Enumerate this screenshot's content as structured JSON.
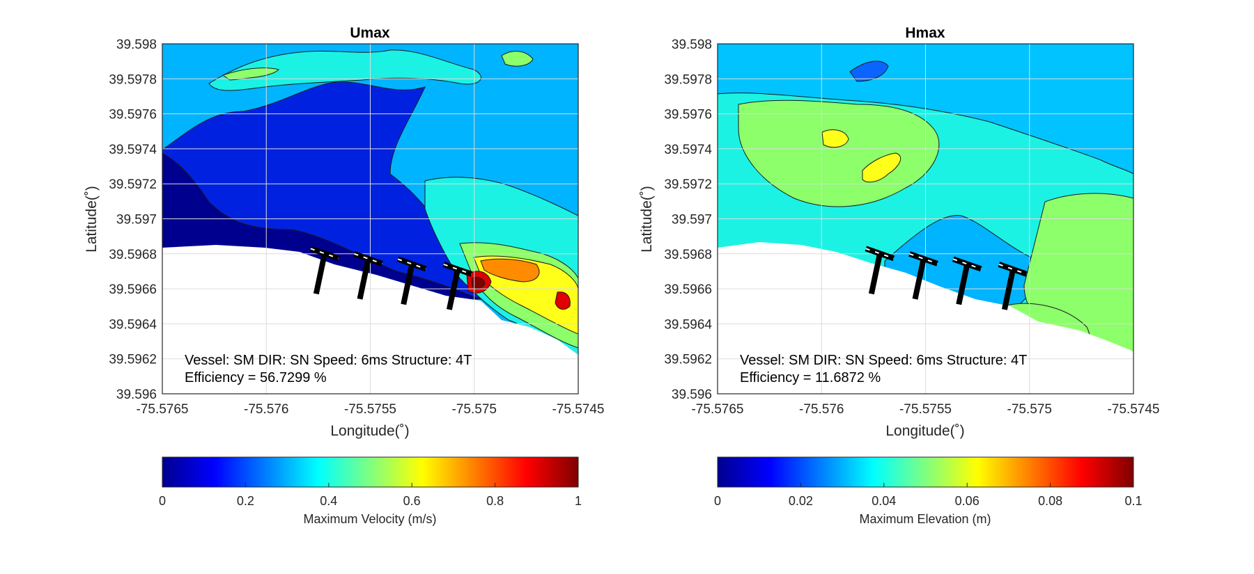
{
  "colors": {
    "deep_blue": "#00008f",
    "blue": "#0022e0",
    "mid_blue": "#0a64ff",
    "sky": "#00b4ff",
    "cyan": "#1cf2e4",
    "light_green": "#8cff6a",
    "yellow": "#ffff1a",
    "orange": "#ff8c00",
    "red": "#e00000",
    "dark_red": "#800000",
    "land": "#ffffff",
    "structure": "#000000"
  },
  "chart_data": [
    {
      "type": "heatmap",
      "title": "Umax",
      "xlabel": "Longitude(˚)",
      "ylabel": "Latitude(˚)",
      "xlim": [
        -75.5765,
        -75.5745
      ],
      "ylim": [
        39.596,
        39.598
      ],
      "xticks": [
        "-75.5765",
        "-75.576",
        "-75.5755",
        "-75.575",
        "-75.5745"
      ],
      "yticks": [
        "39.598",
        "39.5978",
        "39.5976",
        "39.5974",
        "39.5972",
        "39.597",
        "39.5968",
        "39.5966",
        "39.5964",
        "39.5962",
        "39.596"
      ],
      "grid": true,
      "colorbar": {
        "label": "Maximum Velocity (m/s)",
        "min": 0,
        "max": 1,
        "ticks": [
          "0",
          "0.2",
          "0.4",
          "0.6",
          "0.8",
          "1"
        ],
        "colormap": "jet"
      },
      "annotation_line1": "Vessel: SM DIR: SN Speed: 6ms Structure: 4T",
      "annotation_line2": "Efficiency = 56.7299 %",
      "structures_count": 4
    },
    {
      "type": "heatmap",
      "title": "Hmax",
      "xlabel": "Longitude(˚)",
      "ylabel": "Latitude(˚)",
      "xlim": [
        -75.5765,
        -75.5745
      ],
      "ylim": [
        39.596,
        39.598
      ],
      "xticks": [
        "-75.5765",
        "-75.576",
        "-75.5755",
        "-75.575",
        "-75.5745"
      ],
      "yticks": [
        "39.598",
        "39.5978",
        "39.5976",
        "39.5974",
        "39.5972",
        "39.597",
        "39.5968",
        "39.5966",
        "39.5964",
        "39.5962",
        "39.596"
      ],
      "grid": true,
      "colorbar": {
        "label": "Maximum Elevation (m)",
        "min": 0,
        "max": 0.1,
        "ticks": [
          "0",
          "0.02",
          "0.04",
          "0.06",
          "0.08",
          "0.1"
        ],
        "colormap": "jet"
      },
      "annotation_line1": "Vessel: SM DIR: SN Speed: 6ms Structure: 4T",
      "annotation_line2": "Efficiency = 11.6872 %",
      "structures_count": 4
    }
  ]
}
